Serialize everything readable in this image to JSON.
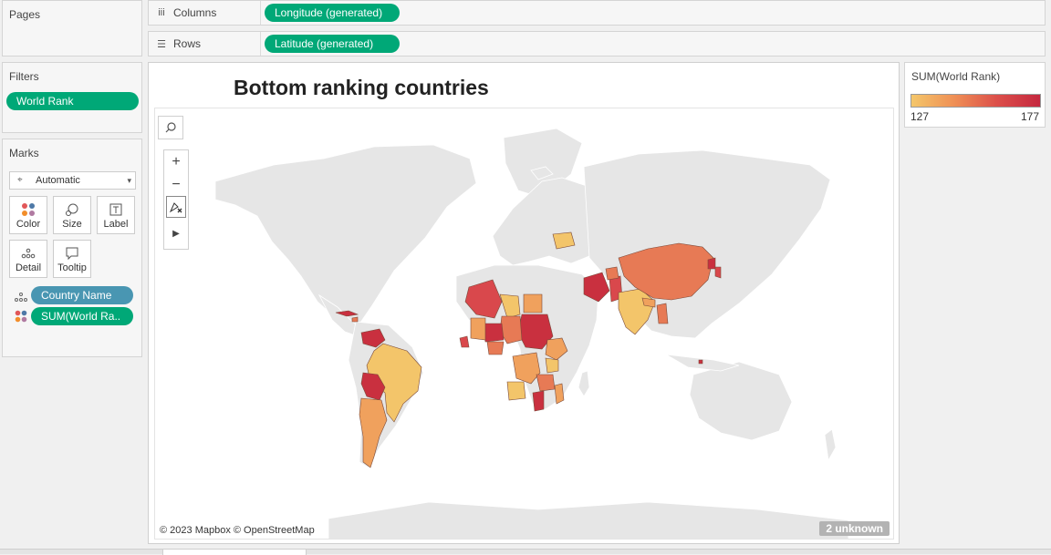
{
  "pages": {
    "title": "Pages"
  },
  "filters": {
    "title": "Filters",
    "pills": [
      "World Rank"
    ]
  },
  "marks": {
    "title": "Marks",
    "mark_type": "Automatic",
    "cards": {
      "color": "Color",
      "size": "Size",
      "label": "Label",
      "detail": "Detail",
      "tooltip": "Tooltip"
    },
    "fields": [
      "Country Name",
      "SUM(World Ra.."
    ]
  },
  "shelves": {
    "columns": {
      "label": "Columns",
      "pill": "Longitude (generated)"
    },
    "rows": {
      "label": "Rows",
      "pill": "Latitude (generated)"
    }
  },
  "viz": {
    "title": "Bottom ranking countries",
    "attribution": "© 2023 Mapbox © OpenStreetMap",
    "unknown_badge": "2 unknown"
  },
  "legend": {
    "title": "SUM(World Rank)",
    "min": "127",
    "max": "177",
    "color_low": "#f4c76a",
    "color_high": "#c5283f"
  },
  "colors": {
    "pill_green": "#00a877",
    "pill_blue": "#4996b2"
  }
}
